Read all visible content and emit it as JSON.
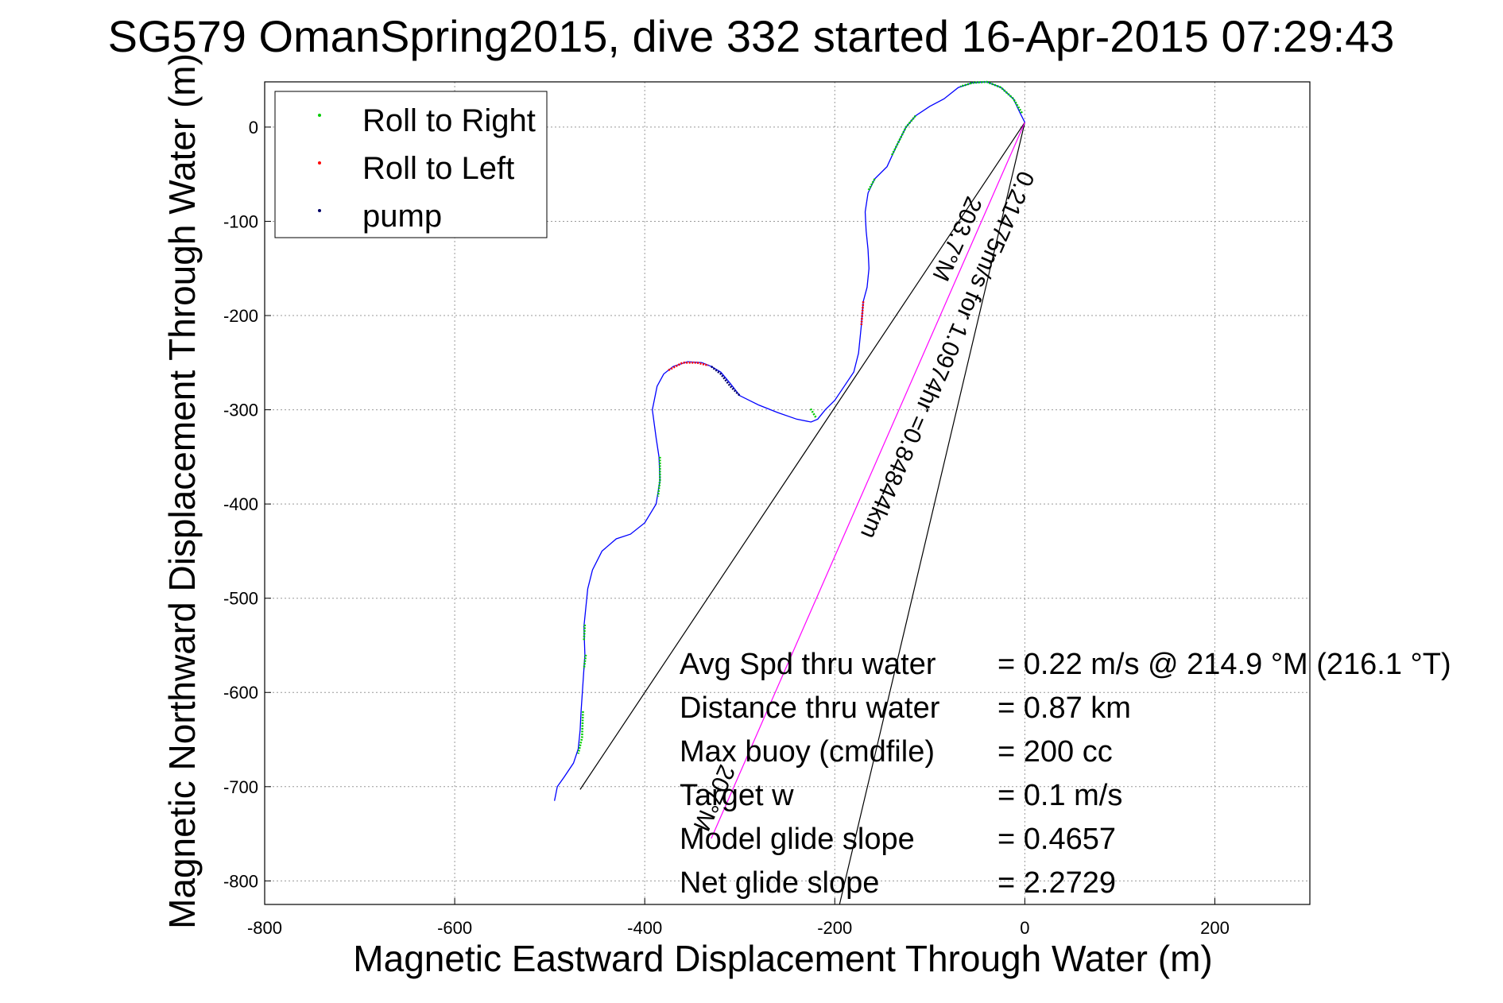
{
  "chart_data": {
    "type": "scatter",
    "title": "SG579 OmanSpring2015, dive 332 started 16-Apr-2015 07:29:43",
    "xlabel": "Magnetic Eastward Displacement Through Water (m)",
    "ylabel": "Magnetic Northward Displacement Through Water (m)",
    "xlim": [
      -800,
      300
    ],
    "ylim": [
      -825,
      48
    ],
    "xticks": [
      -800,
      -600,
      -400,
      -200,
      0,
      200
    ],
    "yticks": [
      0,
      -100,
      -200,
      -300,
      -400,
      -500,
      -600,
      -700,
      -800
    ],
    "grid": true,
    "legend": {
      "placement": "top-left",
      "entries": [
        {
          "label": "Roll to Right",
          "color": "#00cc00"
        },
        {
          "label": "Roll to Left",
          "color": "#ff0000"
        },
        {
          "label": "pump",
          "color": "#000066"
        }
      ]
    },
    "track": {
      "color": "#0000ff",
      "points": [
        [
          0,
          5
        ],
        [
          -5,
          15
        ],
        [
          -12,
          30
        ],
        [
          -25,
          42
        ],
        [
          -40,
          48
        ],
        [
          -55,
          47
        ],
        [
          -70,
          42
        ],
        [
          -85,
          30
        ],
        [
          -100,
          22
        ],
        [
          -115,
          12
        ],
        [
          -125,
          0
        ],
        [
          -135,
          -20
        ],
        [
          -145,
          -42
        ],
        [
          -158,
          -55
        ],
        [
          -165,
          -70
        ],
        [
          -168,
          -90
        ],
        [
          -167,
          -110
        ],
        [
          -165,
          -130
        ],
        [
          -164,
          -150
        ],
        [
          -166,
          -170
        ],
        [
          -170,
          -185
        ],
        [
          -172,
          -210
        ],
        [
          -175,
          -240
        ],
        [
          -180,
          -260
        ],
        [
          -190,
          -275
        ],
        [
          -200,
          -290
        ],
        [
          -210,
          -300
        ],
        [
          -218,
          -310
        ],
        [
          -225,
          -313
        ],
        [
          -240,
          -310
        ],
        [
          -260,
          -303
        ],
        [
          -280,
          -295
        ],
        [
          -300,
          -285
        ],
        [
          -310,
          -272
        ],
        [
          -320,
          -260
        ],
        [
          -330,
          -254
        ],
        [
          -340,
          -250
        ],
        [
          -355,
          -249
        ],
        [
          -370,
          -254
        ],
        [
          -380,
          -262
        ],
        [
          -387,
          -275
        ],
        [
          -392,
          -300
        ],
        [
          -388,
          -330
        ],
        [
          -385,
          -350
        ],
        [
          -384,
          -375
        ],
        [
          -388,
          -400
        ],
        [
          -400,
          -420
        ],
        [
          -415,
          -432
        ],
        [
          -430,
          -437
        ],
        [
          -445,
          -450
        ],
        [
          -455,
          -470
        ],
        [
          -460,
          -490
        ],
        [
          -462,
          -510
        ],
        [
          -464,
          -530
        ],
        [
          -463,
          -560
        ],
        [
          -465,
          -590
        ],
        [
          -467,
          -620
        ],
        [
          -468,
          -640
        ],
        [
          -470,
          -660
        ],
        [
          -475,
          -675
        ],
        [
          -485,
          -690
        ],
        [
          -492,
          -700
        ],
        [
          -495,
          -715
        ]
      ]
    },
    "roll_right_segments": [
      [
        [
          -3,
          15
        ],
        [
          -12,
          30
        ],
        [
          -25,
          42
        ],
        [
          -40,
          48
        ],
        [
          -55,
          47
        ],
        [
          -68,
          43
        ]
      ],
      [
        [
          -115,
          12
        ],
        [
          -125,
          0
        ],
        [
          -135,
          -20
        ],
        [
          -140,
          -30
        ]
      ],
      [
        [
          -158,
          -55
        ],
        [
          -165,
          -68
        ]
      ],
      [
        [
          -220,
          -308
        ],
        [
          -226,
          -298
        ]
      ],
      [
        [
          -384,
          -350
        ],
        [
          -384,
          -375
        ],
        [
          -386,
          -392
        ]
      ],
      [
        [
          -463,
          -528
        ],
        [
          -464,
          -545
        ]
      ],
      [
        [
          -462,
          -560
        ],
        [
          -464,
          -575
        ]
      ],
      [
        [
          -465,
          -620
        ],
        [
          -466,
          -648
        ],
        [
          -470,
          -665
        ]
      ]
    ],
    "roll_left_segments": [
      [
        [
          -170,
          -185
        ],
        [
          -172,
          -210
        ]
      ],
      [
        [
          -375,
          -258
        ],
        [
          -360,
          -250
        ],
        [
          -345,
          -250
        ],
        [
          -333,
          -253
        ]
      ]
    ],
    "pump_segments": [
      [
        [
          -330,
          -254
        ],
        [
          -320,
          -262
        ],
        [
          -310,
          -275
        ],
        [
          -300,
          -285
        ]
      ]
    ],
    "lines": [
      {
        "name": "ray_left",
        "color": "#000000",
        "from": [
          0,
          5
        ],
        "to": [
          -468,
          -703
        ]
      },
      {
        "name": "ray_right",
        "color": "#000000",
        "from": [
          0,
          5
        ],
        "to": [
          -195,
          -825
        ]
      },
      {
        "name": "heading",
        "color": "#ff00ff",
        "from": [
          0,
          5
        ],
        "to": [
          -330,
          -755
        ]
      }
    ],
    "annotations": [
      "0.21475m/s for 1.0974hr =0.84844km",
      "203.7°M",
      "207°M"
    ],
    "stats": [
      {
        "label": "Avg Spd thru water",
        "value": "=  0.22 m/s @ 214.9 °M (216.1 °T)"
      },
      {
        "label": "Distance thru water",
        "value": "=  0.87 km"
      },
      {
        "label": "Max buoy (cmdfile)",
        "value": "= 200 cc"
      },
      {
        "label": "Target w",
        "value": "= 0.1 m/s"
      },
      {
        "label": "Model glide slope",
        "value": "= 0.4657"
      },
      {
        "label": "Net glide slope",
        "value": "= 2.2729"
      }
    ]
  }
}
